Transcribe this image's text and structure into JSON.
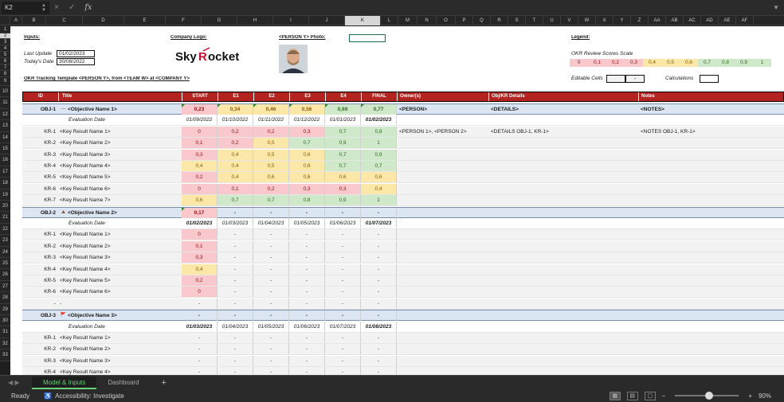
{
  "formula_bar": {
    "cell_ref": "K2",
    "fx": "fx",
    "cancel": "×",
    "confirm": "✓"
  },
  "columns": [
    "A",
    "B",
    "C",
    "D",
    "E",
    "F",
    "G",
    "H",
    "I",
    "J",
    "K",
    "L",
    "M",
    "N",
    "O",
    "P",
    "Q",
    "R",
    "S",
    "T",
    "U",
    "V",
    "W",
    "X",
    "Y",
    "Z",
    "AA",
    "AB",
    "AC",
    "AD",
    "AE",
    "AF"
  ],
  "selected_column": "K",
  "rows": [
    "1",
    "2",
    "3",
    "4",
    "5",
    "6",
    "7",
    "8",
    "9",
    "10",
    "11",
    "12",
    "13",
    "14",
    "15",
    "16",
    "17",
    "18",
    "19",
    "20",
    "21",
    "22",
    "23",
    "24",
    "25",
    "26",
    "27",
    "28",
    "29",
    "30",
    "31",
    "32",
    "33"
  ],
  "selected_row": "2",
  "inputs": {
    "title": "Inputs:",
    "last_update_label": "Last Update",
    "last_update": "01/02/2023",
    "today_label": "Today's Date",
    "today": "30/08/2022"
  },
  "logo": {
    "title": "Company Logo:",
    "text": "SkyRocket"
  },
  "photo": {
    "title": "<PERSON Y> Photo:"
  },
  "template_title": "OKR Tracking Template <PERSON Y>, from <TEAM W> at <COMPANY Y>",
  "legend": {
    "title": "Legend:",
    "scale_label": "OKR Review Scores Scale",
    "values": [
      "0",
      "0,1",
      "0,2",
      "0,3",
      "0,4",
      "0,5",
      "0,6",
      "0,7",
      "0,8",
      "0,9",
      "1"
    ],
    "editable_label": "Editable Cells",
    "editable_value": "-",
    "calc_label": "Calculations"
  },
  "header": {
    "id": "ID",
    "title": "Title",
    "start": "START",
    "e1": "E1",
    "e2": "E2",
    "e3": "E3",
    "e4": "E4",
    "final": "FINAL",
    "owners": "Owner(s)",
    "details": "Obj/KR Details",
    "notes": "Notes"
  },
  "grid_rows": [
    {
      "kind": "obj",
      "id": "OBJ-1",
      "icon": "—",
      "title": "<Objective Name 1>",
      "vals": [
        "0,23",
        "0,34",
        "0,46",
        "0,56",
        "0,69",
        "0,77"
      ],
      "owner": "<PERSON>",
      "details": "<DETAILS>",
      "notes": "<NOTES>"
    },
    {
      "kind": "eval",
      "title": "Evaluation Date",
      "vals": [
        "01/09/2022",
        "01/10/2022",
        "01/11/2022",
        "01/12/2022",
        "01/01/2023",
        "01/02/2023"
      ]
    },
    {
      "kind": "kr",
      "id": "KR-1",
      "title": "<Key Result Name 1>",
      "vals": [
        "0",
        "0,2",
        "0,2",
        "0,3",
        "0,7",
        "0,8"
      ],
      "owner": "<PERSON 1>, <PERSON 2>",
      "details": "<DETAILS OBJ-1, KR-1>",
      "notes": "<NOTES OBJ-1, KR-1>"
    },
    {
      "kind": "kr",
      "id": "KR-2",
      "title": "<Key Result Name 2>",
      "vals": [
        "0,1",
        "0,2",
        "0,5",
        "0,7",
        "0,9",
        "1"
      ]
    },
    {
      "kind": "kr",
      "id": "KR-3",
      "title": "<Key Result Name 3>",
      "vals": [
        "0,3",
        "0,4",
        "0,5",
        "0,6",
        "0,7",
        "0,9"
      ]
    },
    {
      "kind": "kr",
      "id": "KR-4",
      "title": "<Key Result Name 4>",
      "vals": [
        "0,4",
        "0,4",
        "0,5",
        "0,6",
        "0,7",
        "0,7"
      ]
    },
    {
      "kind": "kr",
      "id": "KR-5",
      "title": "<Key Result Name 5>",
      "vals": [
        "0,2",
        "0,4",
        "0,6",
        "0,6",
        "0,6",
        "0,6"
      ]
    },
    {
      "kind": "kr",
      "id": "KR-6",
      "title": "<Key Result Name 6>",
      "vals": [
        "0",
        "0,1",
        "0,2",
        "0,3",
        "0,3",
        "0,4"
      ]
    },
    {
      "kind": "kr",
      "id": "KR-7",
      "title": "<Key Result Name 7>",
      "vals": [
        "0,6",
        "0,7",
        "0,7",
        "0,8",
        "0,9",
        "1"
      ]
    },
    {
      "kind": "obj",
      "id": "OBJ-2",
      "icon": "⛰",
      "title": "<Objective Name 2>",
      "vals": [
        "0,17",
        "-",
        "-",
        "-",
        "-",
        "-"
      ]
    },
    {
      "kind": "eval",
      "title": "Evaluation Date",
      "vals": [
        "01/02/2023",
        "01/03/2023",
        "01/04/2023",
        "01/05/2023",
        "01/06/2023",
        "01/07/2023"
      ]
    },
    {
      "kind": "kr",
      "id": "KR-1",
      "title": "<Key Result Name 1>",
      "vals": [
        "0",
        "-",
        "-",
        "-",
        "-",
        "-"
      ]
    },
    {
      "kind": "kr",
      "id": "KR-2",
      "title": "<Key Result Name 2>",
      "vals": [
        "0,1",
        "-",
        "-",
        "-",
        "-",
        "-"
      ]
    },
    {
      "kind": "kr",
      "id": "KR-3",
      "title": "<Key Result Name 3>",
      "vals": [
        "0,3",
        "-",
        "-",
        "-",
        "-",
        "-"
      ]
    },
    {
      "kind": "kr",
      "id": "KR-4",
      "title": "<Key Result Name 4>",
      "vals": [
        "0,4",
        "-",
        "-",
        "-",
        "-",
        "-"
      ]
    },
    {
      "kind": "kr",
      "id": "KR-5",
      "title": "<Key Result Name 5>",
      "vals": [
        "0,2",
        "-",
        "-",
        "-",
        "-",
        "-"
      ]
    },
    {
      "kind": "kr",
      "id": "KR-6",
      "title": "<Key Result Name 6>",
      "vals": [
        "0",
        "-",
        "-",
        "-",
        "-",
        "-"
      ]
    },
    {
      "kind": "kr",
      "id": "-",
      "title": "-",
      "vals": [
        "-",
        "-",
        "-",
        "-",
        "-",
        "-"
      ]
    },
    {
      "kind": "obj",
      "id": "OBJ-3",
      "icon": "🚩",
      "title": "<Objective Name 3>",
      "vals": [
        "-",
        "-",
        "-",
        "-",
        "-",
        "-"
      ]
    },
    {
      "kind": "eval",
      "title": "Evaluation Date",
      "vals": [
        "01/03/2023",
        "01/04/2023",
        "01/05/2023",
        "01/06/2023",
        "01/07/2023",
        "01/08/2023"
      ]
    },
    {
      "kind": "kr",
      "id": "KR-1",
      "title": "<Key Result Name 1>",
      "vals": [
        "-",
        "-",
        "-",
        "-",
        "-",
        "-"
      ]
    },
    {
      "kind": "kr",
      "id": "KR-2",
      "title": "<Key Result Name 2>",
      "vals": [
        "-",
        "-",
        "-",
        "-",
        "-",
        "-"
      ]
    },
    {
      "kind": "kr",
      "id": "KR-3",
      "title": "<Key Result Name 3>",
      "vals": [
        "-",
        "-",
        "-",
        "-",
        "-",
        "-"
      ]
    },
    {
      "kind": "kr",
      "id": "KR-4",
      "title": "<Key Result Name 4>",
      "vals": [
        "-",
        "-",
        "-",
        "-",
        "-",
        "-"
      ]
    }
  ],
  "tabs": [
    "Model & Inputs",
    "Dashboard"
  ],
  "add_tab": "+",
  "status": {
    "ready": "Ready",
    "accessibility": "Accessibility: Investigate",
    "zoom": "90%"
  },
  "colors": {
    "header_red": "#b3231f",
    "obj_blue": "#dce6f2",
    "score_red": "#f8c8cc",
    "score_yellow": "#fbe7a8",
    "score_green": "#cfe8c9",
    "accent_green": "#6ad17a"
  }
}
